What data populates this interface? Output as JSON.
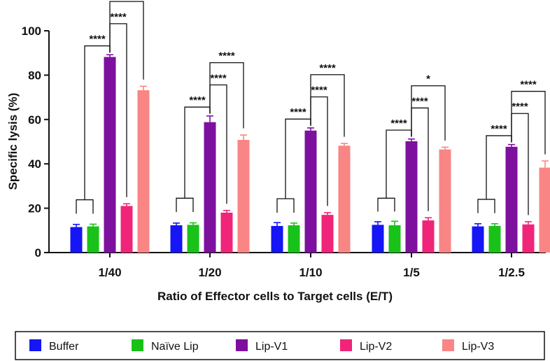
{
  "chart_data": {
    "type": "bar",
    "title": "",
    "xlabel": "Ratio of Effector cells to Target cells (E/T)",
    "ylabel": "Specific lysis (%)",
    "ylim": [
      0,
      100
    ],
    "yticks": [
      0,
      20,
      40,
      60,
      80,
      100
    ],
    "categories": [
      "1/40",
      "1/20",
      "1/10",
      "1/5",
      "1/2.5"
    ],
    "series": [
      {
        "name": "Buffer",
        "color": "#1515f5",
        "values": [
          11.5,
          12.3,
          12.0,
          12.5,
          11.8
        ],
        "errors": [
          1.2,
          1.0,
          1.5,
          1.4,
          1.2
        ]
      },
      {
        "name": "Naïve Lip",
        "color": "#19c219",
        "values": [
          11.8,
          12.5,
          12.3,
          12.3,
          12.0
        ],
        "errors": [
          1.0,
          0.9,
          1.0,
          1.8,
          1.0
        ]
      },
      {
        "name": "Lip-V1",
        "color": "#7d109e",
        "values": [
          88.2,
          58.8,
          55.0,
          50.2,
          47.7
        ],
        "errors": [
          1.0,
          2.8,
          1.2,
          1.0,
          1.0
        ]
      },
      {
        "name": "Lip-V2",
        "color": "#f0257a",
        "values": [
          21.0,
          18.0,
          17.0,
          14.5,
          12.7
        ],
        "errors": [
          1.0,
          1.0,
          1.0,
          1.2,
          1.2
        ]
      },
      {
        "name": "Lip-V3",
        "color": "#fa8585",
        "values": [
          73.2,
          50.8,
          48.2,
          46.5,
          38.3
        ],
        "errors": [
          1.8,
          2.2,
          1.0,
          1.0,
          3.0
        ]
      }
    ],
    "legend_position": "bottom",
    "significance": [
      {
        "group": "1/40",
        "brackets": [
          {
            "to": "Lip-V2",
            "label": "****",
            "level": 1
          },
          {
            "to": "Lip-V3",
            "label": "****",
            "level": 2
          }
        ],
        "left_label": "****"
      },
      {
        "group": "1/20",
        "brackets": [
          {
            "to": "Lip-V2",
            "label": "****",
            "level": 1
          },
          {
            "to": "Lip-V3",
            "label": "****",
            "level": 2
          }
        ],
        "left_label": "****"
      },
      {
        "group": "1/10",
        "brackets": [
          {
            "to": "Lip-V2",
            "label": "****",
            "level": 1
          },
          {
            "to": "Lip-V3",
            "label": "****",
            "level": 2
          }
        ],
        "left_label": "****"
      },
      {
        "group": "1/5",
        "brackets": [
          {
            "to": "Lip-V2",
            "label": "****",
            "level": 1
          },
          {
            "to": "Lip-V3",
            "label": "*",
            "level": 2
          }
        ],
        "left_label": "****"
      },
      {
        "group": "1/2.5",
        "brackets": [
          {
            "to": "Lip-V2",
            "label": "****",
            "level": 1
          },
          {
            "to": "Lip-V3",
            "label": "****",
            "level": 2
          }
        ],
        "left_label": "****"
      }
    ]
  }
}
